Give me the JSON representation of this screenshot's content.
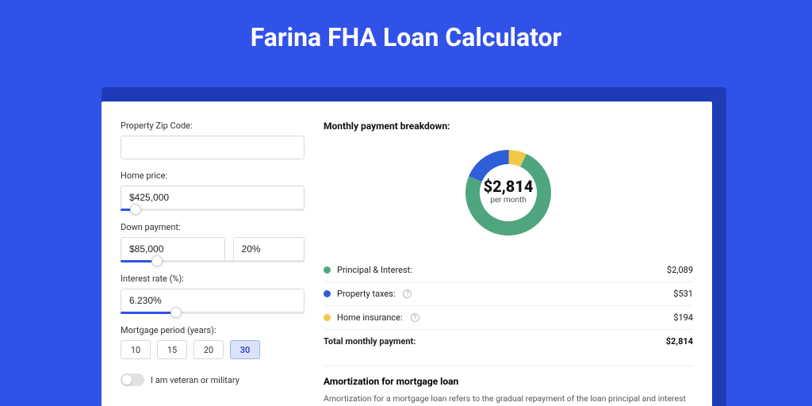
{
  "page": {
    "title": "Farina FHA Loan Calculator",
    "bg_color": "#3152e8",
    "card_shadow_color": "#1f3bb8"
  },
  "form": {
    "zip": {
      "label": "Property Zip Code:",
      "value": ""
    },
    "home_price": {
      "label": "Home price:",
      "value": "$425,000",
      "slider": {
        "fill_pct": 8,
        "thumb_pct": 8
      }
    },
    "down_payment": {
      "label": "Down payment:",
      "amount": "$85,000",
      "percent": "20%",
      "slider": {
        "fill_pct": 20,
        "thumb_pct": 20
      }
    },
    "interest_rate": {
      "label": "Interest rate (%):",
      "value": "6.230%",
      "slider": {
        "fill_pct": 30,
        "thumb_pct": 30
      }
    },
    "mortgage_period": {
      "label": "Mortgage period (years):",
      "options": [
        "10",
        "15",
        "20",
        "30"
      ],
      "active": "30"
    },
    "veteran_toggle": {
      "label": "I am veteran or military",
      "on": false
    }
  },
  "breakdown": {
    "heading": "Monthly payment breakdown:",
    "center_value": "$2,814",
    "center_sub": "per month",
    "donut": {
      "radius": 45,
      "stroke_width": 18,
      "circumference": 282.74,
      "segments": [
        {
          "key": "principal_interest",
          "color": "#4fa57d",
          "fraction": 0.742
        },
        {
          "key": "property_taxes",
          "color": "#2f5fd8",
          "fraction": 0.189
        },
        {
          "key": "home_insurance",
          "color": "#f0c94a",
          "fraction": 0.069
        }
      ]
    },
    "rows": [
      {
        "label": "Principal & Interest:",
        "value": "$2,089",
        "color": "#4fa57d",
        "info": false
      },
      {
        "label": "Property taxes:",
        "value": "$531",
        "color": "#2f5fd8",
        "info": true
      },
      {
        "label": "Home insurance:",
        "value": "$194",
        "color": "#f0c94a",
        "info": true
      }
    ],
    "total": {
      "label": "Total monthly payment:",
      "value": "$2,814"
    }
  },
  "amortization": {
    "heading": "Amortization for mortgage loan",
    "body": "Amortization for a mortgage loan refers to the gradual repayment of the loan principal and interest over a specified"
  }
}
